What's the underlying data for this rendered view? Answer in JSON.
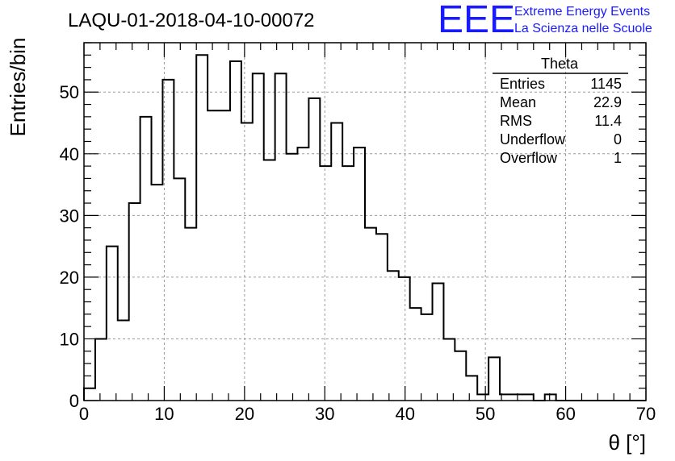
{
  "chart_data": {
    "type": "bar",
    "title": "LAQU-01-2018-04-10-00072",
    "xlabel": "θ [°]",
    "ylabel": "Entries/bin",
    "xlim": [
      0,
      70
    ],
    "ylim": [
      0,
      58
    ],
    "grid": true,
    "bin_width": 1.4,
    "x_ticks": [
      0,
      10,
      20,
      30,
      40,
      50,
      60,
      70
    ],
    "y_ticks": [
      0,
      10,
      20,
      30,
      40,
      50
    ],
    "values": [
      2,
      10,
      25,
      13,
      32,
      46,
      35,
      52,
      36,
      28,
      56,
      47,
      47,
      55,
      45,
      53,
      39,
      53,
      40,
      41,
      49,
      38,
      45,
      38,
      41,
      28,
      27,
      21,
      20,
      15,
      14,
      19,
      10,
      8,
      4,
      1,
      7,
      1,
      1,
      1,
      0,
      1,
      0,
      0,
      0,
      0,
      0,
      0,
      0,
      0
    ]
  },
  "stats": {
    "name": "Theta",
    "rows": [
      {
        "label": "Entries",
        "value": "1145"
      },
      {
        "label": "Mean",
        "value": "22.9"
      },
      {
        "label": "RMS",
        "value": "11.4"
      },
      {
        "label": "Underflow",
        "value": "0"
      },
      {
        "label": "Overflow",
        "value": "1"
      }
    ]
  },
  "logo": {
    "mark": "EEE",
    "line1": "Extreme Energy Events",
    "line2": "La Scienza nelle Scuole",
    "color": "#1a1aff"
  }
}
